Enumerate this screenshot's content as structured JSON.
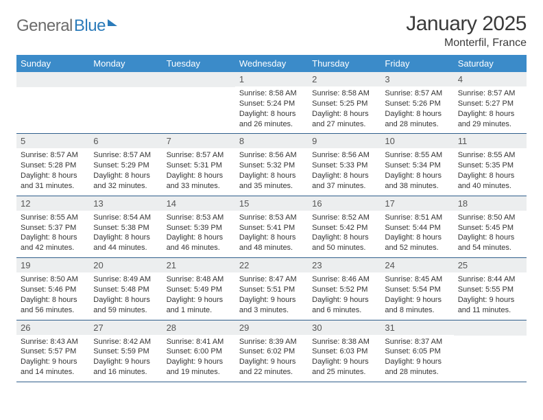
{
  "logo": {
    "word1": "General",
    "word2": "Blue"
  },
  "header": {
    "title": "January 2025",
    "location": "Monterfil, France"
  },
  "colors": {
    "header_bg": "#3b8bc9",
    "header_text": "#ffffff",
    "daynum_bg": "#eceeef",
    "cell_border": "#2e5d8a",
    "logo_gray": "#6b6b6b",
    "logo_blue": "#2b7bba"
  },
  "weekdays": [
    "Sunday",
    "Monday",
    "Tuesday",
    "Wednesday",
    "Thursday",
    "Friday",
    "Saturday"
  ],
  "weeks": [
    [
      null,
      null,
      null,
      {
        "n": "1",
        "r": "8:58 AM",
        "s": "5:24 PM",
        "d": "8 hours and 26 minutes."
      },
      {
        "n": "2",
        "r": "8:58 AM",
        "s": "5:25 PM",
        "d": "8 hours and 27 minutes."
      },
      {
        "n": "3",
        "r": "8:57 AM",
        "s": "5:26 PM",
        "d": "8 hours and 28 minutes."
      },
      {
        "n": "4",
        "r": "8:57 AM",
        "s": "5:27 PM",
        "d": "8 hours and 29 minutes."
      }
    ],
    [
      {
        "n": "5",
        "r": "8:57 AM",
        "s": "5:28 PM",
        "d": "8 hours and 31 minutes."
      },
      {
        "n": "6",
        "r": "8:57 AM",
        "s": "5:29 PM",
        "d": "8 hours and 32 minutes."
      },
      {
        "n": "7",
        "r": "8:57 AM",
        "s": "5:31 PM",
        "d": "8 hours and 33 minutes."
      },
      {
        "n": "8",
        "r": "8:56 AM",
        "s": "5:32 PM",
        "d": "8 hours and 35 minutes."
      },
      {
        "n": "9",
        "r": "8:56 AM",
        "s": "5:33 PM",
        "d": "8 hours and 37 minutes."
      },
      {
        "n": "10",
        "r": "8:55 AM",
        "s": "5:34 PM",
        "d": "8 hours and 38 minutes."
      },
      {
        "n": "11",
        "r": "8:55 AM",
        "s": "5:35 PM",
        "d": "8 hours and 40 minutes."
      }
    ],
    [
      {
        "n": "12",
        "r": "8:55 AM",
        "s": "5:37 PM",
        "d": "8 hours and 42 minutes."
      },
      {
        "n": "13",
        "r": "8:54 AM",
        "s": "5:38 PM",
        "d": "8 hours and 44 minutes."
      },
      {
        "n": "14",
        "r": "8:53 AM",
        "s": "5:39 PM",
        "d": "8 hours and 46 minutes."
      },
      {
        "n": "15",
        "r": "8:53 AM",
        "s": "5:41 PM",
        "d": "8 hours and 48 minutes."
      },
      {
        "n": "16",
        "r": "8:52 AM",
        "s": "5:42 PM",
        "d": "8 hours and 50 minutes."
      },
      {
        "n": "17",
        "r": "8:51 AM",
        "s": "5:44 PM",
        "d": "8 hours and 52 minutes."
      },
      {
        "n": "18",
        "r": "8:50 AM",
        "s": "5:45 PM",
        "d": "8 hours and 54 minutes."
      }
    ],
    [
      {
        "n": "19",
        "r": "8:50 AM",
        "s": "5:46 PM",
        "d": "8 hours and 56 minutes."
      },
      {
        "n": "20",
        "r": "8:49 AM",
        "s": "5:48 PM",
        "d": "8 hours and 59 minutes."
      },
      {
        "n": "21",
        "r": "8:48 AM",
        "s": "5:49 PM",
        "d": "9 hours and 1 minute."
      },
      {
        "n": "22",
        "r": "8:47 AM",
        "s": "5:51 PM",
        "d": "9 hours and 3 minutes."
      },
      {
        "n": "23",
        "r": "8:46 AM",
        "s": "5:52 PM",
        "d": "9 hours and 6 minutes."
      },
      {
        "n": "24",
        "r": "8:45 AM",
        "s": "5:54 PM",
        "d": "9 hours and 8 minutes."
      },
      {
        "n": "25",
        "r": "8:44 AM",
        "s": "5:55 PM",
        "d": "9 hours and 11 minutes."
      }
    ],
    [
      {
        "n": "26",
        "r": "8:43 AM",
        "s": "5:57 PM",
        "d": "9 hours and 14 minutes."
      },
      {
        "n": "27",
        "r": "8:42 AM",
        "s": "5:59 PM",
        "d": "9 hours and 16 minutes."
      },
      {
        "n": "28",
        "r": "8:41 AM",
        "s": "6:00 PM",
        "d": "9 hours and 19 minutes."
      },
      {
        "n": "29",
        "r": "8:39 AM",
        "s": "6:02 PM",
        "d": "9 hours and 22 minutes."
      },
      {
        "n": "30",
        "r": "8:38 AM",
        "s": "6:03 PM",
        "d": "9 hours and 25 minutes."
      },
      {
        "n": "31",
        "r": "8:37 AM",
        "s": "6:05 PM",
        "d": "9 hours and 28 minutes."
      },
      null
    ]
  ],
  "labels": {
    "sunrise": "Sunrise:",
    "sunset": "Sunset:",
    "daylight": "Daylight:"
  }
}
